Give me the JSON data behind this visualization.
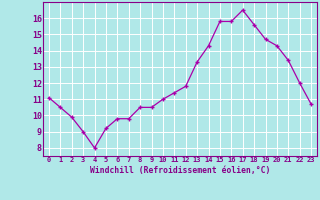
{
  "x": [
    0,
    1,
    2,
    3,
    4,
    5,
    6,
    7,
    8,
    9,
    10,
    11,
    12,
    13,
    14,
    15,
    16,
    17,
    18,
    19,
    20,
    21,
    22,
    23
  ],
  "y": [
    11.1,
    10.5,
    9.9,
    9.0,
    8.0,
    9.2,
    9.8,
    9.8,
    10.5,
    10.5,
    11.0,
    11.4,
    11.8,
    13.3,
    14.3,
    15.8,
    15.8,
    16.5,
    15.6,
    14.7,
    14.3,
    13.4,
    12.0,
    10.7
  ],
  "line_color": "#aa00aa",
  "marker": "+",
  "xlabel": "Windchill (Refroidissement éolien,°C)",
  "ytick_values": [
    8,
    9,
    10,
    11,
    12,
    13,
    14,
    15,
    16
  ],
  "xtick_labels": [
    "0",
    "1",
    "2",
    "3",
    "4",
    "5",
    "6",
    "7",
    "8",
    "9",
    "10",
    "11",
    "12",
    "13",
    "14",
    "15",
    "16",
    "17",
    "18",
    "19",
    "20",
    "21",
    "22",
    "23"
  ],
  "ylim": [
    7.5,
    17.0
  ],
  "xlim": [
    -0.5,
    23.5
  ],
  "background_color": "#b0e8e8",
  "grid_color": "#ffffff",
  "tick_color": "#880088",
  "label_color": "#880088",
  "spine_color": "#880088"
}
